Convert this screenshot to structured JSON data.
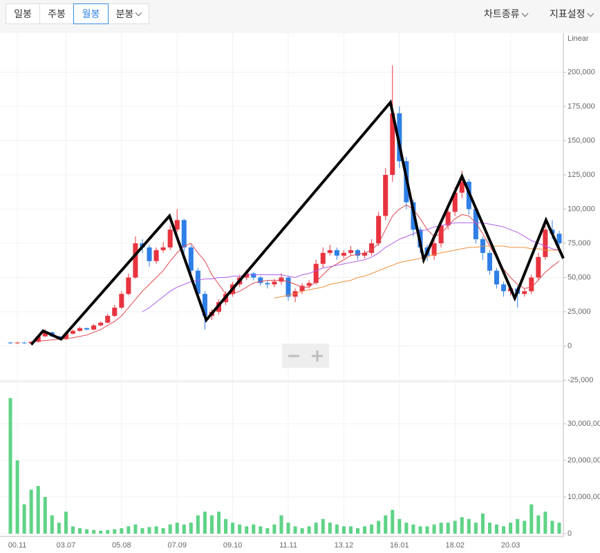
{
  "toolbar": {
    "periods": [
      "일봉",
      "주봉",
      "월봉",
      "분봉"
    ],
    "active_period": 2,
    "menus": [
      "차트종류",
      "지표설정"
    ]
  },
  "chart_data": [
    {
      "type": "candlestick",
      "scale_label": "Linear",
      "open": [
        2500,
        2000,
        2500,
        2000,
        3000,
        7000,
        10000,
        7000,
        5000,
        9000,
        11000,
        13000,
        12000,
        15000,
        17000,
        22000,
        28000,
        38000,
        50000,
        75000,
        72000,
        62000,
        70000,
        72000,
        85000,
        92000,
        72000,
        55000,
        38000,
        22000,
        25000,
        32000,
        38000,
        45000,
        50000,
        53000,
        50000,
        46000,
        45000,
        47000,
        50000,
        36000,
        40000,
        44000,
        46000,
        60000,
        68000,
        70000,
        66000,
        68000,
        70000,
        66000,
        68000,
        75000,
        95000,
        125000,
        170000,
        135000,
        105000,
        85000,
        72000,
        66000,
        75000,
        88000,
        98000,
        112000,
        120000,
        100000,
        78000,
        68000,
        55000,
        45000,
        40000,
        42000,
        38000,
        40000,
        50000,
        65000,
        85000,
        82000
      ],
      "high": [
        3000,
        3000,
        3000,
        3500,
        8000,
        12000,
        10500,
        7500,
        9500,
        12000,
        14000,
        13500,
        16000,
        18000,
        23500,
        30000,
        40000,
        53000,
        80000,
        78000,
        74000,
        72000,
        76000,
        88000,
        100000,
        93000,
        74000,
        57000,
        40000,
        27000,
        34000,
        40000,
        47000,
        52000,
        56000,
        54000,
        51000,
        48000,
        49000,
        53000,
        51000,
        42000,
        46000,
        48000,
        63000,
        72000,
        74000,
        72000,
        70000,
        73000,
        71000,
        70000,
        78000,
        98000,
        130000,
        205000,
        175000,
        138000,
        107000,
        87000,
        74000,
        78000,
        91000,
        101000,
        116000,
        128000,
        122000,
        102000,
        80000,
        70000,
        57000,
        47000,
        44000,
        44000,
        42000,
        52000,
        68000,
        89000,
        92000,
        84000
      ],
      "low": [
        1500,
        1500,
        1500,
        1500,
        2500,
        6500,
        6500,
        4500,
        4500,
        8500,
        10500,
        11500,
        11500,
        14500,
        16500,
        21000,
        27000,
        37000,
        49000,
        68000,
        58000,
        60000,
        68000,
        70000,
        83000,
        68000,
        52000,
        35000,
        12000,
        19000,
        23000,
        30000,
        36000,
        43000,
        48000,
        48000,
        44000,
        42000,
        43000,
        45000,
        33000,
        32000,
        38000,
        42000,
        45000,
        57000,
        66000,
        63000,
        64000,
        66000,
        63000,
        64000,
        66000,
        73000,
        92000,
        120000,
        130000,
        100000,
        80000,
        68000,
        62000,
        63000,
        72000,
        85000,
        95000,
        108000,
        96000,
        75000,
        63000,
        52000,
        42000,
        36000,
        37000,
        28000,
        36000,
        38000,
        48000,
        63000,
        78000,
        70000
      ],
      "close": [
        2000,
        2500,
        2000,
        3000,
        7000,
        10000,
        7000,
        5000,
        9000,
        11000,
        13000,
        12000,
        15000,
        17000,
        22000,
        28000,
        38000,
        50000,
        75000,
        72000,
        62000,
        70000,
        72000,
        85000,
        92000,
        72000,
        55000,
        38000,
        22000,
        25000,
        32000,
        38000,
        45000,
        50000,
        53000,
        50000,
        46000,
        45000,
        47000,
        50000,
        36000,
        40000,
        44000,
        46000,
        60000,
        68000,
        70000,
        66000,
        68000,
        70000,
        66000,
        68000,
        75000,
        95000,
        125000,
        170000,
        135000,
        105000,
        85000,
        72000,
        66000,
        75000,
        88000,
        98000,
        112000,
        120000,
        100000,
        78000,
        68000,
        55000,
        45000,
        40000,
        42000,
        38000,
        40000,
        50000,
        65000,
        85000,
        82000,
        75000
      ],
      "up_color": "#e8333f",
      "down_color": "#2f7fe6",
      "series": [
        {
          "color": "#e0474f",
          "values": [
            null,
            null,
            null,
            3000,
            3500,
            4000,
            4500,
            5000,
            5500,
            6000,
            7000,
            8000,
            10000,
            12000,
            15000,
            18000,
            22000,
            28000,
            34000,
            40000,
            45000,
            50000,
            55000,
            62000,
            68000,
            73000,
            75000,
            68000,
            62000,
            52000,
            45000,
            38000,
            38000,
            40000,
            43000,
            46000,
            47000,
            48000,
            48000,
            48000,
            47000,
            45000,
            43000,
            43000,
            47000,
            52000,
            57000,
            60000,
            63000,
            66000,
            67000,
            68000,
            70000,
            75000,
            85000,
            95000,
            100000,
            103000,
            100000,
            93000,
            85000,
            80000,
            82000,
            88000,
            93000,
            96000,
            95000,
            90000,
            82000,
            73000,
            64000,
            56000,
            50000,
            45000,
            42000,
            43000,
            48000,
            54000,
            58000,
            62000
          ]
        },
        {
          "color": "#b05ee8",
          "values": [
            null,
            null,
            null,
            null,
            null,
            null,
            null,
            null,
            null,
            null,
            null,
            null,
            null,
            null,
            null,
            null,
            null,
            null,
            null,
            25000,
            28000,
            32000,
            36000,
            40000,
            43000,
            45000,
            47000,
            48000,
            49000,
            49000,
            50000,
            50000,
            51000,
            51000,
            52000,
            52000,
            52000,
            52000,
            52000,
            52000,
            51000,
            50000,
            52000,
            53000,
            55000,
            57000,
            58000,
            59000,
            60000,
            61000,
            62000,
            63000,
            65000,
            68000,
            72000,
            75000,
            78000,
            80000,
            82000,
            84000,
            85000,
            87000,
            88000,
            89000,
            90000,
            90000,
            90000,
            90000,
            90000,
            89000,
            88000,
            87000,
            85000,
            83000,
            80000,
            77000,
            75000,
            73000,
            71000,
            70000
          ]
        },
        {
          "color": "#f0903a",
          "values": [
            null,
            null,
            null,
            null,
            null,
            null,
            null,
            null,
            null,
            null,
            null,
            null,
            null,
            null,
            null,
            null,
            null,
            null,
            null,
            null,
            null,
            null,
            null,
            null,
            null,
            null,
            null,
            null,
            null,
            null,
            null,
            null,
            null,
            null,
            null,
            null,
            null,
            null,
            35000,
            36000,
            37000,
            38000,
            40000,
            41000,
            42000,
            43000,
            45000,
            46000,
            47000,
            48000,
            50000,
            51000,
            53000,
            55000,
            57000,
            59000,
            61000,
            62000,
            63000,
            64000,
            65000,
            67000,
            68000,
            69000,
            70000,
            71000,
            72000,
            72000,
            73000,
            73000,
            73000,
            73000,
            72000,
            72000,
            72000,
            71000,
            71000,
            70000,
            70000,
            70000
          ]
        }
      ],
      "zigzag": {
        "color": "#000000",
        "x": [
          3,
          4.7,
          7.3,
          22.9,
          28.2,
          54.7,
          59.5,
          65,
          72.6,
          77.1,
          79.6
        ],
        "values": [
          1000,
          11000,
          5000,
          95000,
          19000,
          178000,
          63000,
          124000,
          35000,
          92000,
          64000
        ]
      },
      "ylim": [
        -25000,
        225000
      ],
      "yticks": [
        {
          "value": -25000,
          "label": "-25,000"
        },
        0,
        {
          "value": 25000,
          "label": "25,000"
        },
        {
          "value": 50000,
          "label": "50,000"
        },
        {
          "value": 75000,
          "label": "75,000"
        },
        {
          "value": 100000,
          "label": "100,000"
        },
        {
          "value": 125000,
          "label": "125,000"
        },
        {
          "value": 150000,
          "label": "150,000"
        },
        {
          "value": 175000,
          "label": "175,000"
        },
        {
          "value": 200000,
          "label": "200,000"
        }
      ],
      "grid": true
    },
    {
      "type": "bar",
      "categories": [
        null,
        "00.11",
        null,
        null,
        null,
        null,
        null,
        null,
        "03.07",
        null,
        null,
        null,
        null,
        null,
        null,
        null,
        "05.08",
        null,
        null,
        null,
        null,
        null,
        null,
        null,
        "07.09",
        null,
        null,
        null,
        null,
        null,
        null,
        null,
        "09.10",
        null,
        null,
        null,
        null,
        null,
        null,
        null,
        "11.11",
        null,
        null,
        null,
        null,
        null,
        null,
        null,
        "13.12",
        null,
        null,
        null,
        null,
        null,
        null,
        null,
        "16.01",
        null,
        null,
        null,
        null,
        null,
        null,
        null,
        "18.02",
        null,
        null,
        null,
        null,
        null,
        null,
        null,
        "20.03",
        null,
        null,
        null,
        null,
        null,
        null,
        null
      ],
      "values": [
        37000000,
        20000000,
        8000000,
        12000000,
        13000000,
        10000000,
        5000000,
        3000000,
        6000000,
        2000000,
        1500000,
        1200000,
        1000000,
        800000,
        1000000,
        1200000,
        1500000,
        2000000,
        2500000,
        1500000,
        1800000,
        2000000,
        1500000,
        2500000,
        3000000,
        2500000,
        3000000,
        5000000,
        6000000,
        5000000,
        6000000,
        4000000,
        3000000,
        2500000,
        2000000,
        2500000,
        2000000,
        1500000,
        2500000,
        5000000,
        3000000,
        2000000,
        1500000,
        2000000,
        3000000,
        4000000,
        3000000,
        2500000,
        2000000,
        2000000,
        1500000,
        2000000,
        2500000,
        3500000,
        5000000,
        6500000,
        4000000,
        3000000,
        2500000,
        2000000,
        2000000,
        2500000,
        3000000,
        3000000,
        3500000,
        4500000,
        4000000,
        3000000,
        5500000,
        3000000,
        2500000,
        2000000,
        3000000,
        4000000,
        3500000,
        8000000,
        5000000,
        6000000,
        3500000,
        3000000
      ],
      "color": "#5fd386",
      "ylim": [
        0,
        40000000
      ],
      "yticks": [
        0,
        {
          "value": 10000000,
          "label": "10,000,000"
        },
        {
          "value": 20000000,
          "label": "20,000,000"
        },
        {
          "value": 30000000,
          "label": "30,000,000"
        }
      ],
      "grid": true
    }
  ]
}
